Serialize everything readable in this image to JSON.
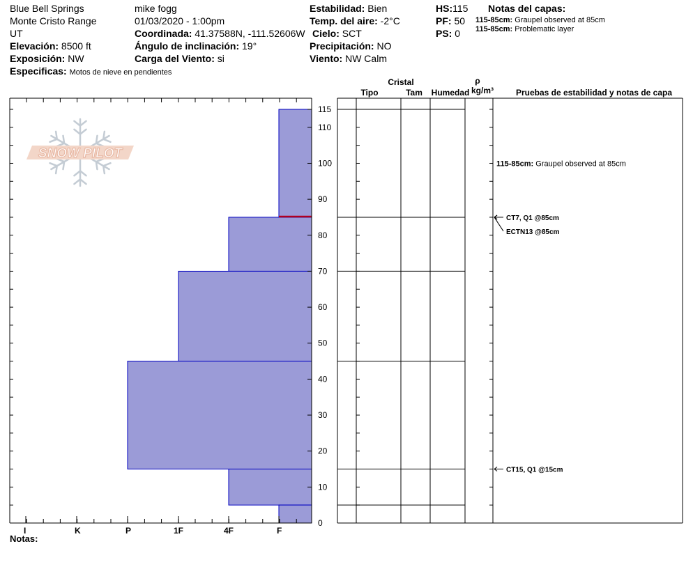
{
  "header": {
    "location": "Blue Bell Springs",
    "range": "Monte Cristo Range",
    "state": "UT",
    "elevation_label": "Elevación:",
    "elevation": "8500 ft",
    "aspect_label": "Exposición:",
    "aspect": "NW",
    "specifics_label": "Especificas:",
    "specifics": "Motos de nieve en pendientes",
    "observer": "mike fogg",
    "datetime": "01/03/2020 - 1:00pm",
    "coord_label": "Coordinada:",
    "coordinates": "41.37588N, -111.52606W",
    "slope_label": "Ángulo de inclinación:",
    "slope": "19°",
    "wind_load_label": "Carga del Viento:",
    "wind_load": "si",
    "stability_label": "Estabilidad:",
    "stability": "Bien",
    "air_temp_label": "Temp. del aire:",
    "air_temp": "-2°C",
    "sky_label": "Cielo:",
    "sky": "SCT",
    "precip_label": "Precipitación:",
    "precip": "NO",
    "wind_label": "Viento:",
    "wind": "NW Calm",
    "hs_label": "HS:",
    "hs": "115",
    "pf_label": "PF:",
    "pf": "50",
    "ps_label": "PS:",
    "ps": "0",
    "layer_notes_title": "Notas del capas:",
    "layer_notes": [
      {
        "range": "115-85cm:",
        "text": "Graupel observed at 85cm"
      },
      {
        "range": "115-85cm:",
        "text": "Problematic layer"
      }
    ]
  },
  "logo_text": "SNOW PILOT",
  "notes_label": "Notas:",
  "colors": {
    "layer_fill": "#9b9bd7",
    "layer_stroke": "#0000c0",
    "weak_layer": "#b00020",
    "logo_fill": "#f3d6c8",
    "logo_text": "#ffffff",
    "snowflake": "#c4ccd4"
  },
  "chart_data": {
    "type": "bar",
    "orientation": "horizontal",
    "y_axis": {
      "label": "",
      "range": [
        0,
        115
      ],
      "ticks": [
        0,
        10,
        20,
        30,
        40,
        50,
        60,
        70,
        80,
        90,
        100,
        110,
        115
      ]
    },
    "x_axis": {
      "categories": [
        "I",
        "K",
        "P",
        "1F",
        "4F",
        "F"
      ],
      "label": ""
    },
    "layers": [
      {
        "bottom": 85,
        "top": 115,
        "hardness": "F"
      },
      {
        "bottom": 70,
        "top": 85,
        "hardness": "4F"
      },
      {
        "bottom": 45,
        "top": 70,
        "hardness": "1F"
      },
      {
        "bottom": 15,
        "top": 45,
        "hardness": "P"
      },
      {
        "bottom": 5,
        "top": 15,
        "hardness": "4F"
      },
      {
        "bottom": 0,
        "top": 5,
        "hardness": "F"
      }
    ],
    "weak_layer_at": 85,
    "table_headers": {
      "tipo": "Tipo",
      "cristal": "Cristal",
      "tam": "Tam",
      "humedad": "Humedad",
      "rho": "ρ",
      "density_unit": "kg/m³",
      "tests": "Pruebas de estabilidad y notas de capa"
    },
    "layer_annotation": {
      "depth": 100,
      "range": "115-85cm:",
      "text": "Graupel observed at 85cm"
    },
    "stability_tests": [
      {
        "depth": 85,
        "text": "CT7, Q1 @85cm"
      },
      {
        "depth": 85,
        "text": "ECTN13 @85cm",
        "offset_row": 1
      },
      {
        "depth": 15,
        "text": "CT15, Q1 @15cm"
      }
    ]
  }
}
